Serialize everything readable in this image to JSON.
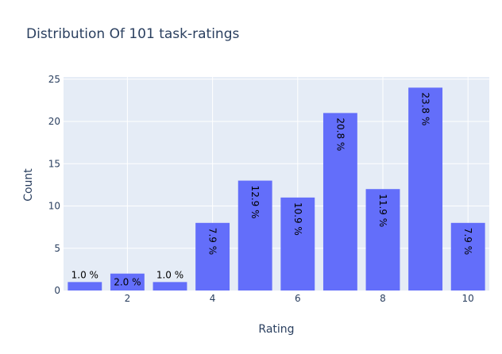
{
  "chart_data": {
    "type": "bar",
    "title": "Distribution Of 101 task-ratings",
    "xlabel": "Rating",
    "ylabel": "Count",
    "x": [
      1,
      2,
      3,
      4,
      5,
      6,
      7,
      8,
      9,
      10
    ],
    "values": [
      1,
      2,
      1,
      8,
      13,
      11,
      21,
      12,
      24,
      8
    ],
    "data_labels": [
      "1.0 %",
      "2.0 %",
      "1.0 %",
      "7.9 %",
      "12.9 %",
      "10.9 %",
      "20.8 %",
      "11.9 %",
      "23.8 %",
      "7.9 %"
    ],
    "xlim": [
      0.5,
      10.5
    ],
    "ylim": [
      0,
      25.26
    ],
    "xticks": [
      2,
      4,
      6,
      8,
      10
    ],
    "yticks": [
      0,
      5,
      10,
      15,
      20,
      25
    ],
    "grid": true,
    "colors": {
      "bar": "#636efa",
      "plot_bg": "#e5ecf6",
      "grid": "#ffffff",
      "text": "#2a3f5f",
      "label": "#000000"
    }
  }
}
